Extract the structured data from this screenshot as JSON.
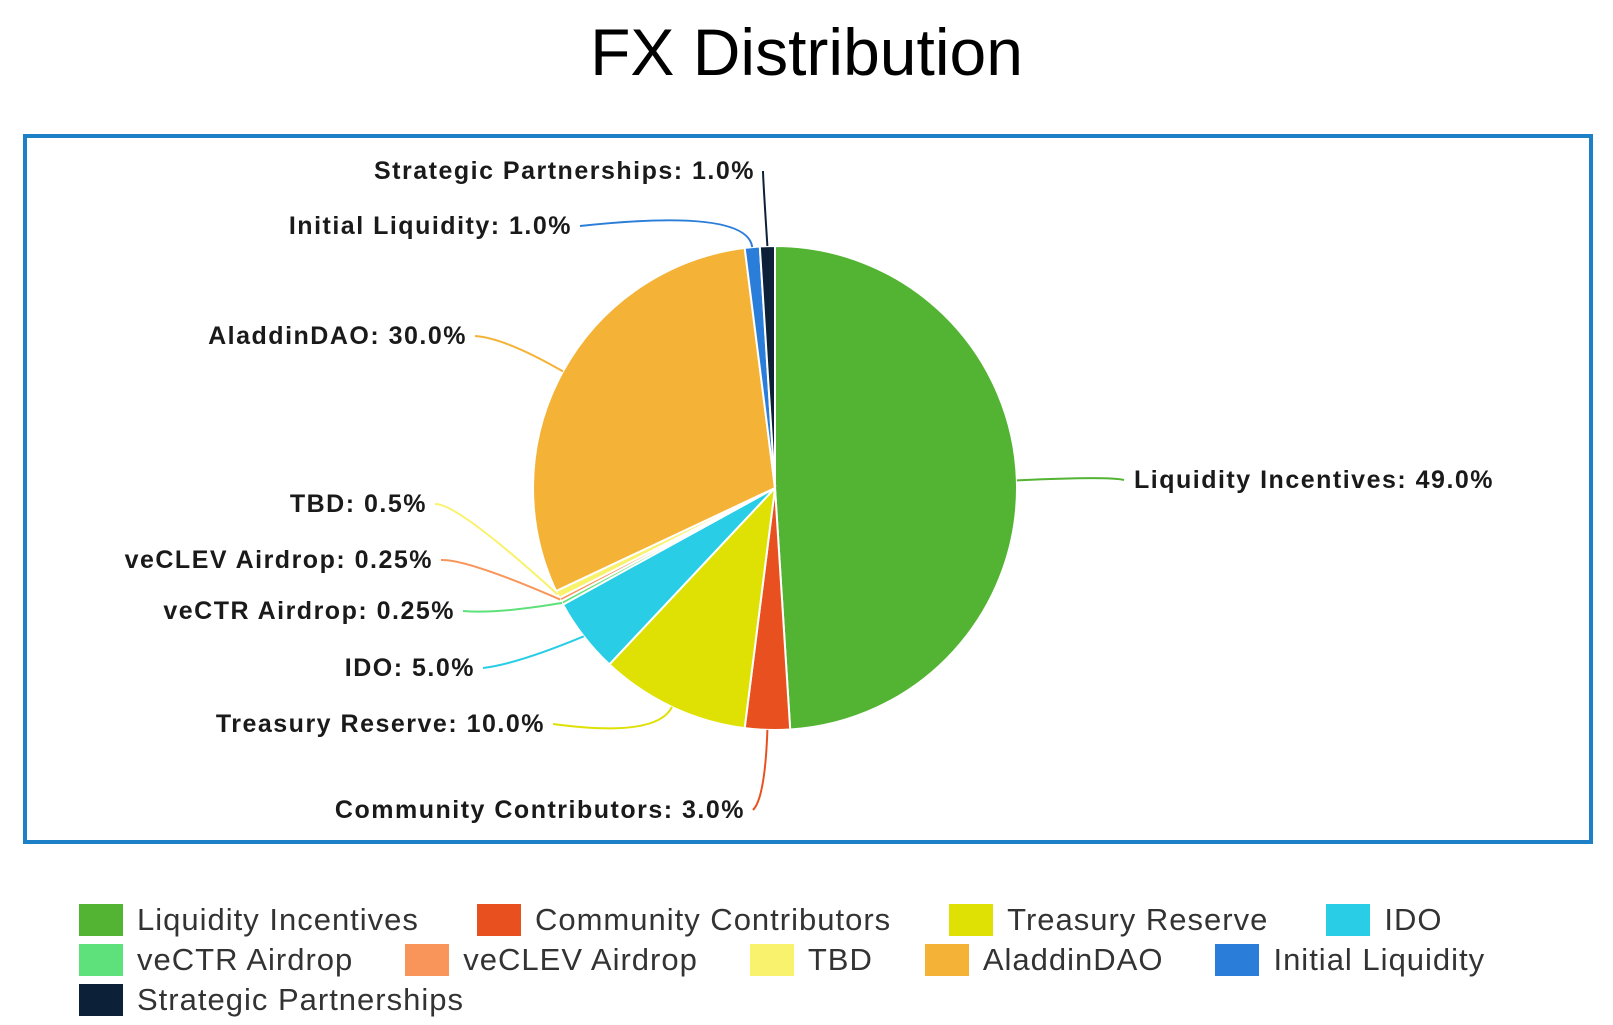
{
  "title": "FX Distribution",
  "chart_data": {
    "type": "pie",
    "title": "FX Distribution",
    "slices": [
      {
        "name": "Liquidity Incentives",
        "value": 49.0,
        "label": "Liquidity Incentives: 49.0%",
        "color": "#53b332"
      },
      {
        "name": "Community Contributors",
        "value": 3.0,
        "label": "Community Contributors: 3.0%",
        "color": "#e8511f"
      },
      {
        "name": "Treasury Reserve",
        "value": 10.0,
        "label": "Treasury Reserve: 10.0%",
        "color": "#dfe004"
      },
      {
        "name": "IDO",
        "value": 5.0,
        "label": "IDO: 5.0%",
        "color": "#29cde6"
      },
      {
        "name": "veCTR Airdrop",
        "value": 0.25,
        "label": "veCTR Airdrop: 0.25%",
        "color": "#5ee07a"
      },
      {
        "name": "veCLEV Airdrop",
        "value": 0.25,
        "label": "veCLEV Airdrop: 0.25%",
        "color": "#f9955a"
      },
      {
        "name": "TBD",
        "value": 0.5,
        "label": "TBD: 0.5%",
        "color": "#f9f26c"
      },
      {
        "name": "AladdinDAO",
        "value": 30.0,
        "label": "AladdinDAO: 30.0%",
        "color": "#f4b337"
      },
      {
        "name": "Initial Liquidity",
        "value": 1.0,
        "label": "Initial Liquidity: 1.0%",
        "color": "#2a7ed9"
      },
      {
        "name": "Strategic Partnerships",
        "value": 1.0,
        "label": "Strategic Partnerships: 1.0%",
        "color": "#0c2137"
      }
    ],
    "legend_placement": "bottom",
    "legend": [
      [
        "Liquidity Incentives",
        "Community Contributors",
        "Treasury Reserve",
        "IDO"
      ],
      [
        "veCTR Airdrop",
        "veCLEV Airdrop",
        "TBD",
        "AladdinDAO",
        "Initial Liquidity"
      ],
      [
        "Strategic Partnerships"
      ]
    ]
  }
}
